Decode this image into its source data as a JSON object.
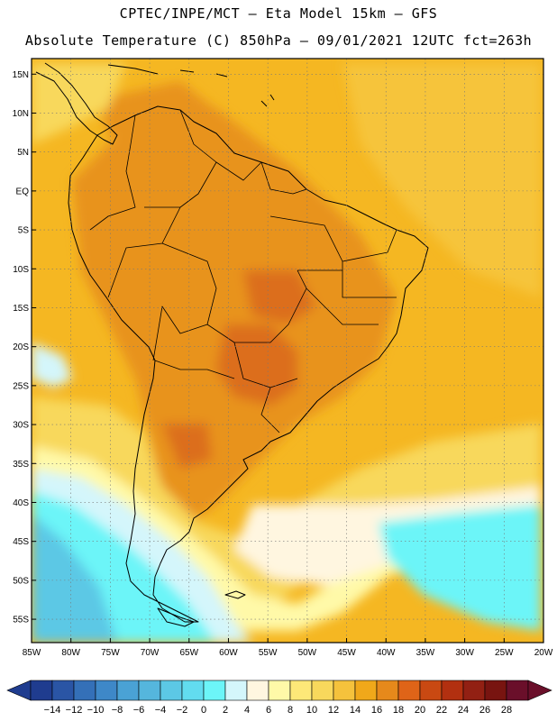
{
  "header": {
    "line1": "CPTEC/INPE/MCT –  Eta Model 15km – GFS",
    "line2": "Absolute Temperature (C) 850hPa – 09/01/2021 12UTC fct=263h"
  },
  "map": {
    "lat_ticks": [
      "15N",
      "10N",
      "5N",
      "EQ",
      "5S",
      "10S",
      "15S",
      "20S",
      "25S",
      "30S",
      "35S",
      "40S",
      "45S",
      "50S",
      "55S"
    ],
    "lon_ticks": [
      "85W",
      "80W",
      "75W",
      "70W",
      "65W",
      "60W",
      "55W",
      "50W",
      "45W",
      "40W",
      "35W",
      "30W",
      "25W",
      "20W"
    ],
    "lon_range": [
      -85,
      -20
    ],
    "lat_range": [
      -58,
      17
    ]
  },
  "colorbar": {
    "labels": [
      "-14",
      "-12",
      "-10",
      "-8",
      "-6",
      "-4",
      "-2",
      "0",
      "2",
      "4",
      "6",
      "8",
      "10",
      "12",
      "14",
      "16",
      "18",
      "20",
      "22",
      "24",
      "26",
      "28"
    ],
    "colors": [
      "#1f3c8f",
      "#2a55a5",
      "#3470b8",
      "#3e88c8",
      "#4aa2d5",
      "#55b6dd",
      "#5cc8e5",
      "#62dcef",
      "#6cf5f8",
      "#d4f6fb",
      "#fff6e0",
      "#fff9a8",
      "#fde878",
      "#f8d85c",
      "#f5c23c",
      "#f0a81a",
      "#e6891b",
      "#df6418",
      "#c94912",
      "#b23010",
      "#922013",
      "#781410",
      "#6a0f2a"
    ]
  },
  "fields": {
    "background": "#f5b722",
    "ocean_warm": "#f6c43a",
    "land_hot": "#e8931f",
    "core_hot": "#dc6e1d",
    "mild": "#f8d85c",
    "pale": "#fff9a8",
    "cream": "#fff6e0",
    "light_cyan": "#d4f6fb",
    "cyan": "#6cf5f8",
    "cyan_dark": "#5cc8e5"
  }
}
